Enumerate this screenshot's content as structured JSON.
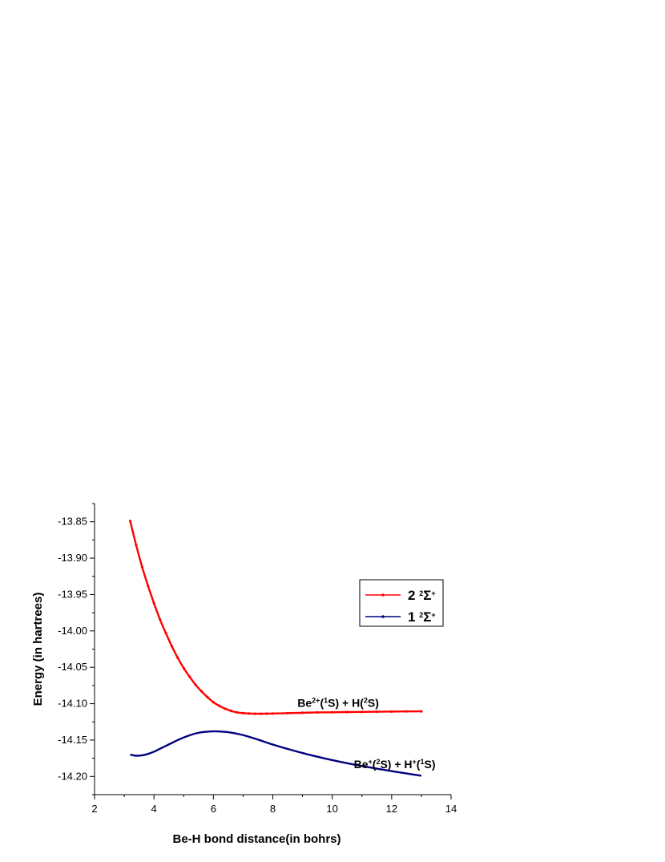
{
  "chart_data": {
    "type": "line",
    "xlabel": "Be-H bond distance(in bohrs)",
    "ylabel": "Energy (in hartrees)",
    "xlim": [
      2,
      14
    ],
    "ylim": [
      -14.225,
      -13.825
    ],
    "xticks": [
      2,
      4,
      6,
      8,
      10,
      12,
      14
    ],
    "xtick_labels": [
      "2",
      "4",
      "6",
      "8",
      "10",
      "12",
      "14"
    ],
    "yticks": [
      -14.2,
      -14.15,
      -14.1,
      -14.05,
      -14.0,
      -13.95,
      -13.9,
      -13.85
    ],
    "ytick_labels": [
      "-14.20",
      "-14.15",
      "-14.10",
      "-14.05",
      "-14.00",
      "-13.95",
      "-13.90",
      "-13.85"
    ],
    "grid": false,
    "legend_position": "right",
    "series": [
      {
        "name": "2 2Σ+",
        "legend": {
          "main": "2",
          "sup1": "2",
          "base": "Σ",
          "sup2": "+"
        },
        "color": "#ff0000",
        "markers": true,
        "x": [
          3.2,
          3.4,
          3.6,
          3.8,
          4.0,
          4.2,
          4.4,
          4.6,
          4.8,
          5.0,
          5.2,
          5.4,
          5.6,
          5.8,
          6.0,
          6.2,
          6.4,
          6.6,
          6.8,
          7.0,
          7.2,
          7.4,
          7.6,
          7.8,
          8.0,
          8.5,
          9.0,
          9.5,
          10.0,
          10.5,
          11.0,
          11.5,
          12.0,
          12.5,
          13.0
        ],
        "y": [
          -13.849,
          -13.882,
          -13.912,
          -13.938,
          -13.962,
          -13.984,
          -14.003,
          -14.021,
          -14.037,
          -14.051,
          -14.063,
          -14.074,
          -14.083,
          -14.091,
          -14.098,
          -14.103,
          -14.107,
          -14.11,
          -14.112,
          -14.113,
          -14.1135,
          -14.1138,
          -14.1138,
          -14.1137,
          -14.1135,
          -14.113,
          -14.1125,
          -14.112,
          -14.1118,
          -14.1115,
          -14.1113,
          -14.111,
          -14.1108,
          -14.1106,
          -14.1105
        ]
      },
      {
        "name": "1 2Σ+",
        "legend": {
          "main": "1",
          "sup1": "2",
          "base": "Σ",
          "sup2": "+"
        },
        "color": "#000080",
        "markers": false,
        "x": [
          3.2,
          3.4,
          3.6,
          3.8,
          4.0,
          4.2,
          4.4,
          4.6,
          4.8,
          5.0,
          5.2,
          5.4,
          5.6,
          5.8,
          6.0,
          6.2,
          6.4,
          6.6,
          6.8,
          7.0,
          7.2,
          7.4,
          7.6,
          7.8,
          8.0,
          8.5,
          9.0,
          9.5,
          10.0,
          10.5,
          11.0,
          11.5,
          12.0,
          12.5,
          13.0
        ],
        "y": [
          -14.17,
          -14.1715,
          -14.171,
          -14.169,
          -14.166,
          -14.162,
          -14.158,
          -14.154,
          -14.15,
          -14.1465,
          -14.1435,
          -14.141,
          -14.1393,
          -14.1384,
          -14.138,
          -14.1381,
          -14.1387,
          -14.1398,
          -14.1413,
          -14.1432,
          -14.1455,
          -14.148,
          -14.1507,
          -14.1535,
          -14.1562,
          -14.1622,
          -14.1678,
          -14.1729,
          -14.1776,
          -14.1818,
          -14.1857,
          -14.1893,
          -14.1927,
          -14.1959,
          -14.199
        ]
      }
    ],
    "annotations": [
      {
        "id": "upper-asymptote",
        "x": 10.2,
        "y": -14.1045,
        "parts": [
          {
            "t": "Be"
          },
          {
            "t": "2+",
            "sup": true
          },
          {
            "t": "("
          },
          {
            "t": "1",
            "sup": true
          },
          {
            "t": "S) + H("
          },
          {
            "t": "2",
            "sup": true
          },
          {
            "t": "S)"
          }
        ]
      },
      {
        "id": "lower-asymptote",
        "x": 12.1,
        "y": -14.1885,
        "parts": [
          {
            "t": "Be"
          },
          {
            "t": "+",
            "sup": true
          },
          {
            "t": "("
          },
          {
            "t": "2",
            "sup": true
          },
          {
            "t": "S) + H"
          },
          {
            "t": "+",
            "sup": true
          },
          {
            "t": "("
          },
          {
            "t": "1",
            "sup": true
          },
          {
            "t": "S)"
          }
        ]
      }
    ]
  }
}
